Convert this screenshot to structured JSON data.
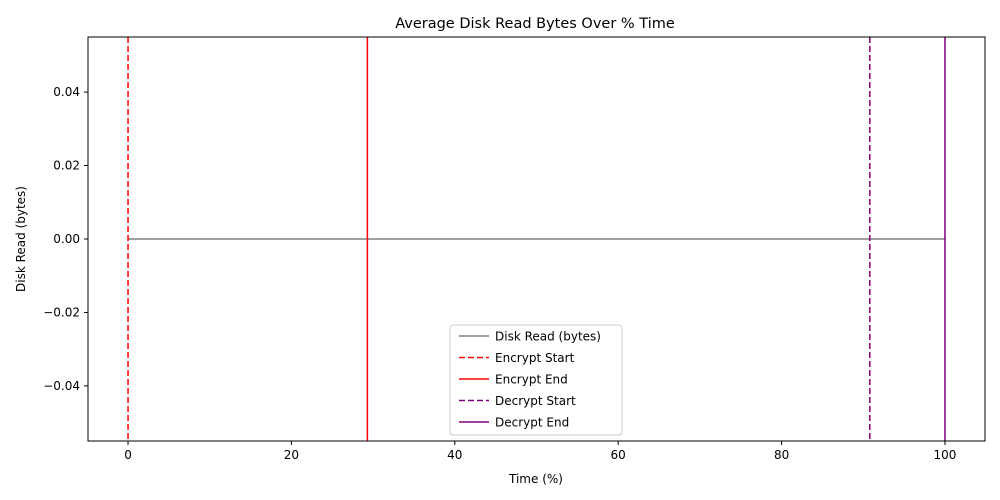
{
  "chart_data": {
    "type": "line",
    "title": "Average Disk Read Bytes Over % Time",
    "xlabel": "Time (%)",
    "ylabel": "Disk Read (bytes)",
    "xlim": [
      -4.9,
      104.9
    ],
    "ylim": [
      -0.055,
      0.055
    ],
    "xticks": [
      0,
      20,
      40,
      60,
      80,
      100
    ],
    "xtick_labels": [
      "0",
      "20",
      "40",
      "60",
      "80",
      "100"
    ],
    "yticks": [
      -0.04,
      -0.02,
      0.0,
      0.02,
      0.04
    ],
    "ytick_labels": [
      "−0.04",
      "−0.02",
      "0.00",
      "0.02",
      "0.04"
    ],
    "grid": false,
    "legend_position": "lower-center",
    "series": [
      {
        "name": "Disk Read (bytes)",
        "color": "#808080",
        "style": "solid",
        "x": [
          0,
          100
        ],
        "y": [
          0,
          0
        ]
      }
    ],
    "vlines": [
      {
        "name": "Encrypt Start",
        "x": 0,
        "color": "#ff0000",
        "style": "dashed"
      },
      {
        "name": "Encrypt End",
        "x": 29.3,
        "color": "#ff0000",
        "style": "solid"
      },
      {
        "name": "Decrypt Start",
        "x": 90.8,
        "color": "#800080",
        "style": "dashed"
      },
      {
        "name": "Decrypt End",
        "x": 100,
        "color": "#800080",
        "style": "solid"
      }
    ]
  }
}
